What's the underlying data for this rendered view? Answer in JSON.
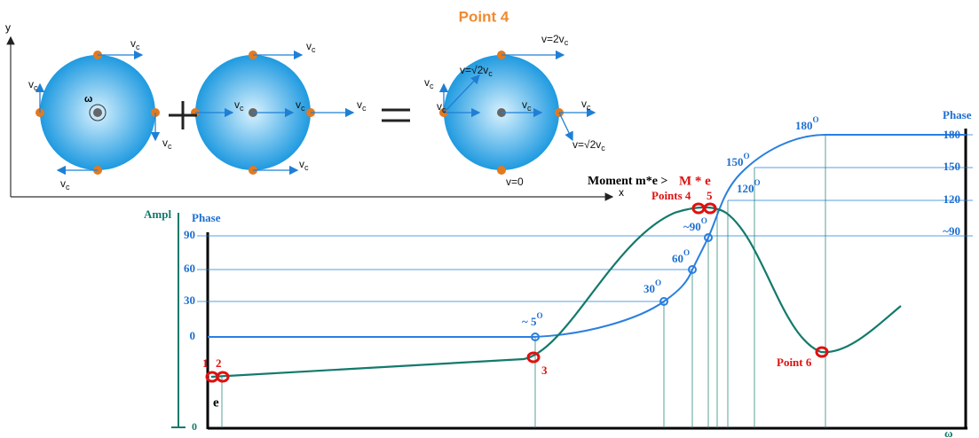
{
  "top_figure": {
    "title": "Point 4",
    "axis_y": "y",
    "axis_x": "x",
    "omega": "ω",
    "velocity_labels": [
      {
        "text": "v",
        "sub": "c"
      },
      {
        "text": "v",
        "sub": "c"
      },
      {
        "text": "v",
        "sub": "c"
      },
      {
        "text": "v",
        "sub": "c"
      },
      {
        "text": "v",
        "sub": "c"
      },
      {
        "text": "v",
        "sub": "c"
      },
      {
        "text": "v",
        "sub": "c"
      },
      {
        "text": "v",
        "sub": "c"
      },
      {
        "text": "v",
        "sub": "c"
      },
      {
        "text": "v=2v",
        "sub": "c"
      },
      {
        "text": "v=√2v",
        "sub": "c"
      },
      {
        "text": "v",
        "sub": "c"
      },
      {
        "text": "v",
        "sub": "c"
      },
      {
        "text": "v",
        "sub": "c"
      },
      {
        "text": "v",
        "sub": "c"
      },
      {
        "text": "v=√2v",
        "sub": "c"
      },
      {
        "text": "v=0"
      }
    ]
  },
  "bottom_figure": {
    "moment_text": "Moment m*e >",
    "moment_value": "M * e",
    "ampl_label": "Ampl",
    "phase_left_label": "Phase",
    "phase_right_label": "Phase",
    "left_ticks": [
      "90",
      "60",
      "30",
      "0"
    ],
    "right_ticks": [
      "180",
      "150",
      "120",
      "~90"
    ],
    "ampl_zero": "0",
    "eccentricity": "e",
    "omega": "ω",
    "point_labels": [
      "1",
      "2",
      "3",
      "Points 4",
      "5",
      "Point 6"
    ],
    "angle_labels": [
      {
        "text": "~ 5",
        "sup": "O"
      },
      {
        "text": "30",
        "sup": "O"
      },
      {
        "text": "60",
        "sup": "O"
      },
      {
        "text": "~90",
        "sup": "O"
      },
      {
        "text": "120",
        "sup": "O"
      },
      {
        "text": "150",
        "sup": "O"
      },
      {
        "text": "180",
        "sup": "O"
      }
    ]
  }
}
